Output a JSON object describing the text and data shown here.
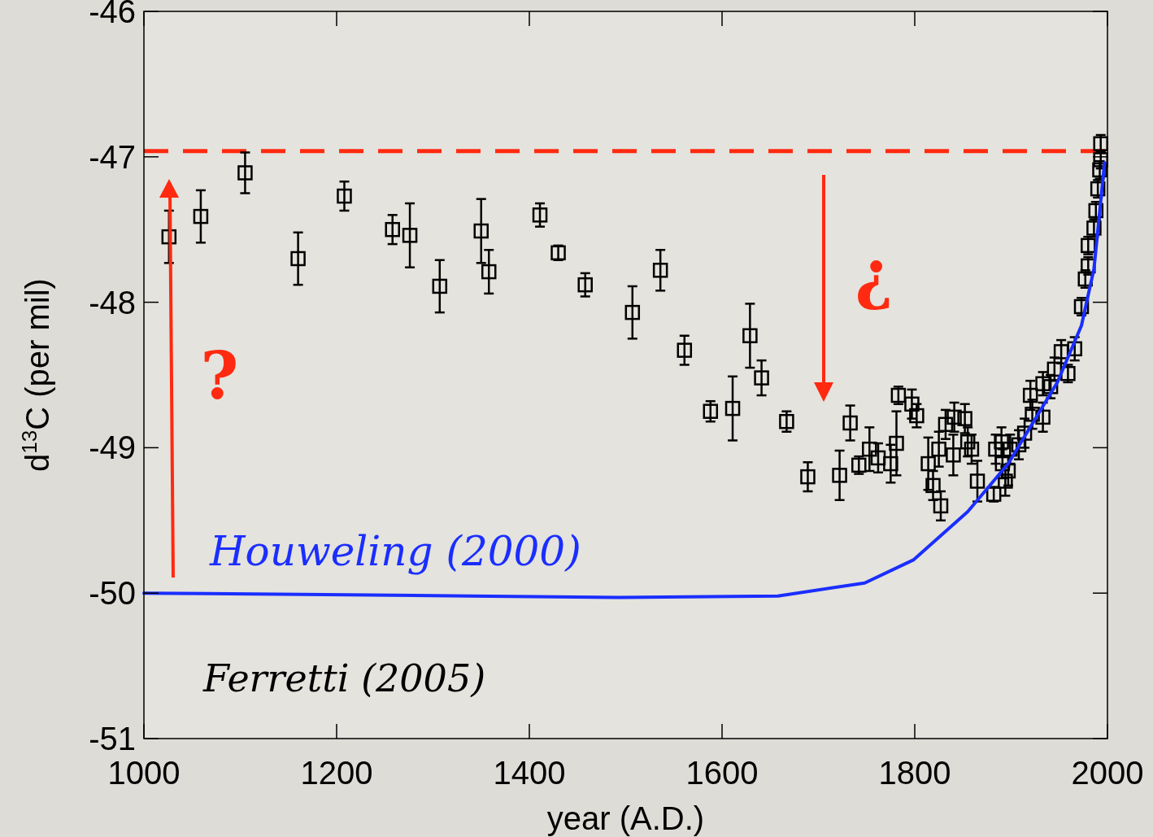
{
  "chart_data": {
    "type": "scatter",
    "xlabel": "year (A.D.)",
    "ylabel": "d$^{13}$C (per mil)",
    "xlim": [
      1000,
      2000
    ],
    "ylim": [
      -51,
      -46
    ],
    "xticks": [
      1000,
      1200,
      1400,
      1600,
      1800,
      2000
    ],
    "yticks": [
      -51,
      -50,
      -49,
      -48,
      -47,
      -46
    ],
    "grid": false,
    "marker": "square",
    "series": [
      {
        "name": "Ferretti (2005)",
        "color": "#000000",
        "x": [
          1026,
          1059,
          1105,
          1160,
          1208,
          1258,
          1276,
          1307,
          1350,
          1358,
          1411,
          1430,
          1458,
          1507,
          1536,
          1561,
          1588,
          1611,
          1629,
          1641,
          1667,
          1689,
          1722,
          1733,
          1742,
          1753,
          1762,
          1775,
          1781,
          1783,
          1797,
          1802,
          1814,
          1819,
          1827,
          1825,
          1832,
          1840,
          1841,
          1852,
          1855,
          1859,
          1865,
          1882,
          1884,
          1890,
          1891,
          1894,
          1897,
          1899,
          1908,
          1914,
          1920,
          1922,
          1933,
          1933,
          1941,
          1945,
          1952,
          1959,
          1966,
          1973,
          1977,
          1980,
          1980,
          1986,
          1988,
          1990,
          1992,
          1993,
          1993
        ],
        "values": [
          -47.55,
          -47.41,
          -47.11,
          -47.7,
          -47.27,
          -47.5,
          -47.54,
          -47.89,
          -47.51,
          -47.79,
          -47.4,
          -47.66,
          -47.88,
          -48.07,
          -47.78,
          -48.33,
          -48.75,
          -48.73,
          -48.23,
          -48.52,
          -48.82,
          -49.2,
          -49.19,
          -48.83,
          -49.12,
          -49.01,
          -49.07,
          -49.11,
          -48.97,
          -48.64,
          -48.7,
          -48.78,
          -49.11,
          -49.26,
          -49.4,
          -49.01,
          -48.84,
          -49.05,
          -48.79,
          -48.8,
          -48.96,
          -49.01,
          -49.23,
          -49.32,
          -49.01,
          -48.96,
          -49.11,
          -49.23,
          -49.16,
          -49.01,
          -48.98,
          -48.9,
          -48.64,
          -48.77,
          -48.79,
          -48.56,
          -48.58,
          -48.46,
          -48.34,
          -48.49,
          -48.32,
          -48.03,
          -47.84,
          -47.75,
          -47.61,
          -47.49,
          -47.37,
          -47.22,
          -47.09,
          -47.02,
          -46.91
        ],
        "errors": [
          0.18,
          0.18,
          0.14,
          0.18,
          0.1,
          0.1,
          0.22,
          0.18,
          0.22,
          0.15,
          0.08,
          0.05,
          0.08,
          0.18,
          0.14,
          0.1,
          0.07,
          0.22,
          0.22,
          0.12,
          0.07,
          0.1,
          0.17,
          0.12,
          0.06,
          0.15,
          0.1,
          0.13,
          0.22,
          0.06,
          0.1,
          0.08,
          0.18,
          0.1,
          0.1,
          0.12,
          0.1,
          0.14,
          0.1,
          0.1,
          0.1,
          0.1,
          0.14,
          0.05,
          0.1,
          0.1,
          0.1,
          0.1,
          0.1,
          0.1,
          0.1,
          0.1,
          0.1,
          0.1,
          0.1,
          0.08,
          0.08,
          0.08,
          0.08,
          0.06,
          0.08,
          0.06,
          0.06,
          0.06,
          0.06,
          0.06,
          0.06,
          0.06,
          0.06,
          0.06,
          0.06
        ]
      },
      {
        "name": "Houweling (2000)",
        "type": "line",
        "color": "#1a2eff",
        "line_style": "solid",
        "marker": "none",
        "x": [
          1000,
          1188,
          1338,
          1492,
          1658,
          1748,
          1799,
          1855,
          1897,
          1948,
          1973,
          1986,
          1997
        ],
        "values": [
          -50,
          -50.01,
          -50.02,
          -50.03,
          -50.02,
          -49.93,
          -49.77,
          -49.44,
          -49.11,
          -48.55,
          -48.16,
          -47.77,
          -47.04
        ]
      }
    ],
    "ref_lines": [
      {
        "axis": "y",
        "value": -46.96,
        "color": "#ff2a10",
        "line_style": "dashed"
      }
    ],
    "annotations": [
      "?",
      "¿"
    ]
  }
}
